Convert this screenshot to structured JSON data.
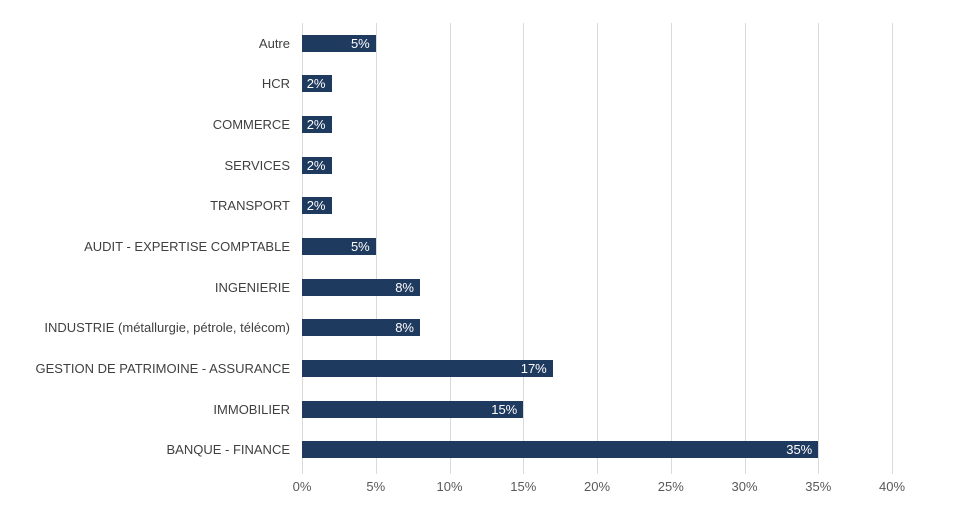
{
  "chart_data": {
    "type": "bar",
    "orientation": "horizontal",
    "title": "",
    "xlabel": "",
    "ylabel": "",
    "categories": [
      "Autre",
      "HCR",
      "COMMERCE",
      "SERVICES",
      "TRANSPORT",
      "AUDIT - EXPERTISE COMPTABLE",
      "INGENIERIE",
      "INDUSTRIE (métallurgie, pétrole, télécom)",
      "GESTION DE PATRIMOINE - ASSURANCE",
      "IMMOBILIER",
      "BANQUE - FINANCE"
    ],
    "values": [
      5,
      2,
      2,
      2,
      2,
      5,
      8,
      8,
      17,
      15,
      35
    ],
    "value_labels": [
      "5%",
      "2%",
      "2%",
      "2%",
      "2%",
      "5%",
      "8%",
      "8%",
      "17%",
      "15%",
      "35%"
    ],
    "xlim": [
      0,
      40
    ],
    "x_ticks": [
      "0%",
      "5%",
      "10%",
      "15%",
      "20%",
      "25%",
      "30%",
      "35%",
      "40%"
    ],
    "grid": true,
    "legend": false,
    "value_label_position": "inside-end"
  },
  "colors": {
    "background": "#FFFFFF",
    "bar": "#1F3A5F",
    "bar_value_label": "#FFFFFF",
    "gridline": "#D9D9D9",
    "axis_tick_label": "#595959",
    "category_label": "#404040"
  }
}
